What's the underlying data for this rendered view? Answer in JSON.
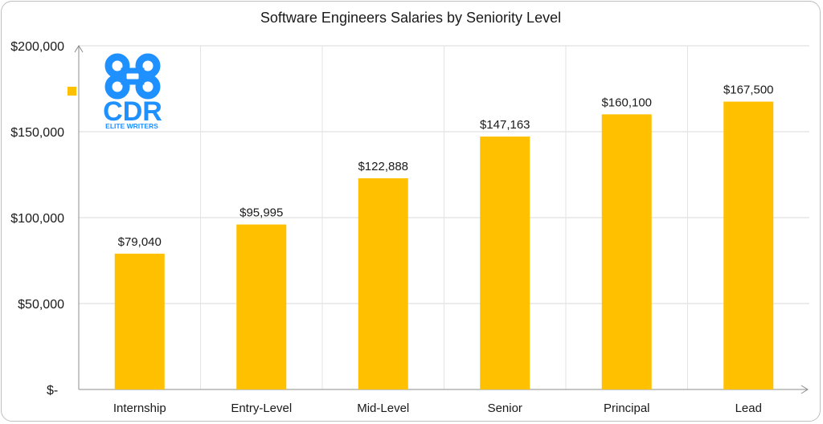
{
  "chart_data": {
    "type": "bar",
    "title": "Software Engineers Salaries by Seniority Level",
    "categories": [
      "Internship",
      "Entry-Level",
      "Mid-Level",
      "Senior",
      "Principal",
      "Lead"
    ],
    "values": [
      79040,
      95995,
      122888,
      147163,
      160100,
      167500
    ],
    "data_labels": [
      "$79,040",
      "$95,995",
      "$122,888",
      "$147,163",
      "$160,100",
      "$167,500"
    ],
    "ylim": [
      0,
      200000
    ],
    "yticks": [
      0,
      50000,
      100000,
      150000,
      200000
    ],
    "ytick_labels": [
      "$-",
      "$50,000",
      "$100,000",
      "$150,000",
      "$200,000"
    ],
    "xlabel": "",
    "ylabel": "",
    "grid": true,
    "bar_color": "#FFC000",
    "legend_placement": "left"
  },
  "logo": {
    "text_main": "CDR",
    "text_sub": "ELITE WRITERS",
    "color": "#1E90FF"
  }
}
